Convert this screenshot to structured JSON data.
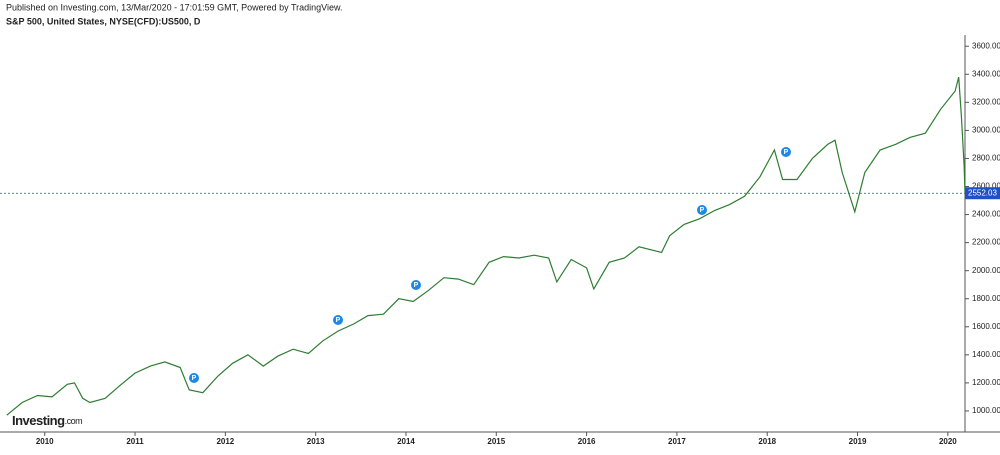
{
  "publisher_note": "Published on Investing.com, 13/Mar/2020 - 17:01:59 GMT, Powered by TradingView.",
  "logo": {
    "brand": "Investing",
    "suffix": ".com"
  },
  "chart_data": {
    "type": "line",
    "title": "S&P 500, United States, NYSE(CFD):US500, D",
    "color": "#2e7d32",
    "x": [
      2009.58,
      2009.75,
      2009.92,
      2010.08,
      2010.25,
      2010.33,
      2010.42,
      2010.5,
      2010.67,
      2010.83,
      2011.0,
      2011.17,
      2011.33,
      2011.5,
      2011.6,
      2011.75,
      2011.92,
      2012.08,
      2012.25,
      2012.42,
      2012.58,
      2012.75,
      2012.92,
      2013.08,
      2013.25,
      2013.42,
      2013.58,
      2013.75,
      2013.92,
      2014.08,
      2014.25,
      2014.42,
      2014.58,
      2014.75,
      2014.92,
      2015.08,
      2015.25,
      2015.42,
      2015.58,
      2015.67,
      2015.83,
      2016.0,
      2016.08,
      2016.25,
      2016.42,
      2016.58,
      2016.83,
      2016.92,
      2017.08,
      2017.25,
      2017.42,
      2017.58,
      2017.75,
      2017.92,
      2018.08,
      2018.17,
      2018.33,
      2018.5,
      2018.67,
      2018.75,
      2018.83,
      2018.97,
      2019.08,
      2019.25,
      2019.42,
      2019.58,
      2019.75,
      2019.92,
      2020.08,
      2020.12,
      2020.15,
      2020.18,
      2020.19
    ],
    "values": [
      970,
      1060,
      1110,
      1100,
      1190,
      1200,
      1090,
      1060,
      1090,
      1180,
      1270,
      1320,
      1350,
      1310,
      1150,
      1130,
      1250,
      1340,
      1400,
      1320,
      1390,
      1440,
      1410,
      1500,
      1570,
      1620,
      1680,
      1690,
      1800,
      1780,
      1860,
      1950,
      1940,
      1900,
      2060,
      2100,
      2090,
      2110,
      2090,
      1920,
      2080,
      2020,
      1870,
      2060,
      2090,
      2170,
      2130,
      2250,
      2330,
      2370,
      2430,
      2470,
      2530,
      2670,
      2860,
      2650,
      2650,
      2800,
      2900,
      2930,
      2700,
      2420,
      2700,
      2860,
      2900,
      2950,
      2980,
      3150,
      3280,
      3380,
      3100,
      2750,
      2552
    ],
    "xlim": [
      2009.56,
      2020.19
    ],
    "xticks": [
      2010,
      2011,
      2012,
      2013,
      2014,
      2015,
      2016,
      2017,
      2018,
      2019,
      2020
    ],
    "ylim": [
      850,
      3680
    ],
    "yticks": [
      {
        "value": 1000,
        "label": "1000.00"
      },
      {
        "value": 1200,
        "label": "1200.00"
      },
      {
        "value": 1400,
        "label": "1400.00"
      },
      {
        "value": 1600,
        "label": "1600.00"
      },
      {
        "value": 1800,
        "label": "1800.00"
      },
      {
        "value": 2000,
        "label": "2000.00"
      },
      {
        "value": 2200,
        "label": "2200.00"
      },
      {
        "value": 2400,
        "label": "2400.00"
      },
      {
        "value": 2600,
        "label": "2600.00"
      },
      {
        "value": 2800,
        "label": "2800.00"
      },
      {
        "value": 3000,
        "label": "3000.00"
      },
      {
        "value": 3200,
        "label": "3200.00"
      },
      {
        "value": 3400,
        "label": "3400.00"
      },
      {
        "value": 3600,
        "label": "3600.00"
      }
    ],
    "last_price": {
      "value": 2552.03,
      "label": "2552.03"
    }
  }
}
